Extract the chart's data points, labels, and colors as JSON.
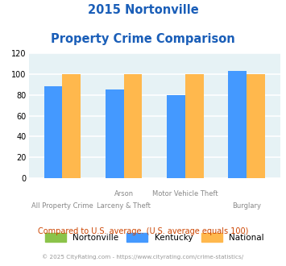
{
  "title_line1": "2015 Nortonville",
  "title_line2": "Property Crime Comparison",
  "cat_labels_top": [
    "",
    "Arson",
    "Motor Vehicle Theft",
    ""
  ],
  "cat_labels_bot": [
    "All Property Crime",
    "Larceny & Theft",
    "",
    "Burglary"
  ],
  "kentucky": [
    88,
    85,
    80,
    103
  ],
  "national": [
    100,
    100,
    100,
    100
  ],
  "bar_colors": {
    "nortonville": "#8bc34a",
    "kentucky": "#4499ff",
    "national": "#ffb84d"
  },
  "ylim": [
    0,
    120
  ],
  "yticks": [
    0,
    20,
    40,
    60,
    80,
    100,
    120
  ],
  "title_color": "#1a5eb8",
  "background_color": "#e6f2f5",
  "grid_color": "#ffffff",
  "subtitle": "Compared to U.S. average. (U.S. average equals 100)",
  "subtitle_color": "#cc4400",
  "footer": "© 2025 CityRating.com - https://www.cityrating.com/crime-statistics/",
  "footer_color": "#999999",
  "legend_labels": [
    "Nortonville",
    "Kentucky",
    "National"
  ],
  "bar_width": 0.3,
  "group_positions": [
    0,
    1,
    2,
    3
  ]
}
